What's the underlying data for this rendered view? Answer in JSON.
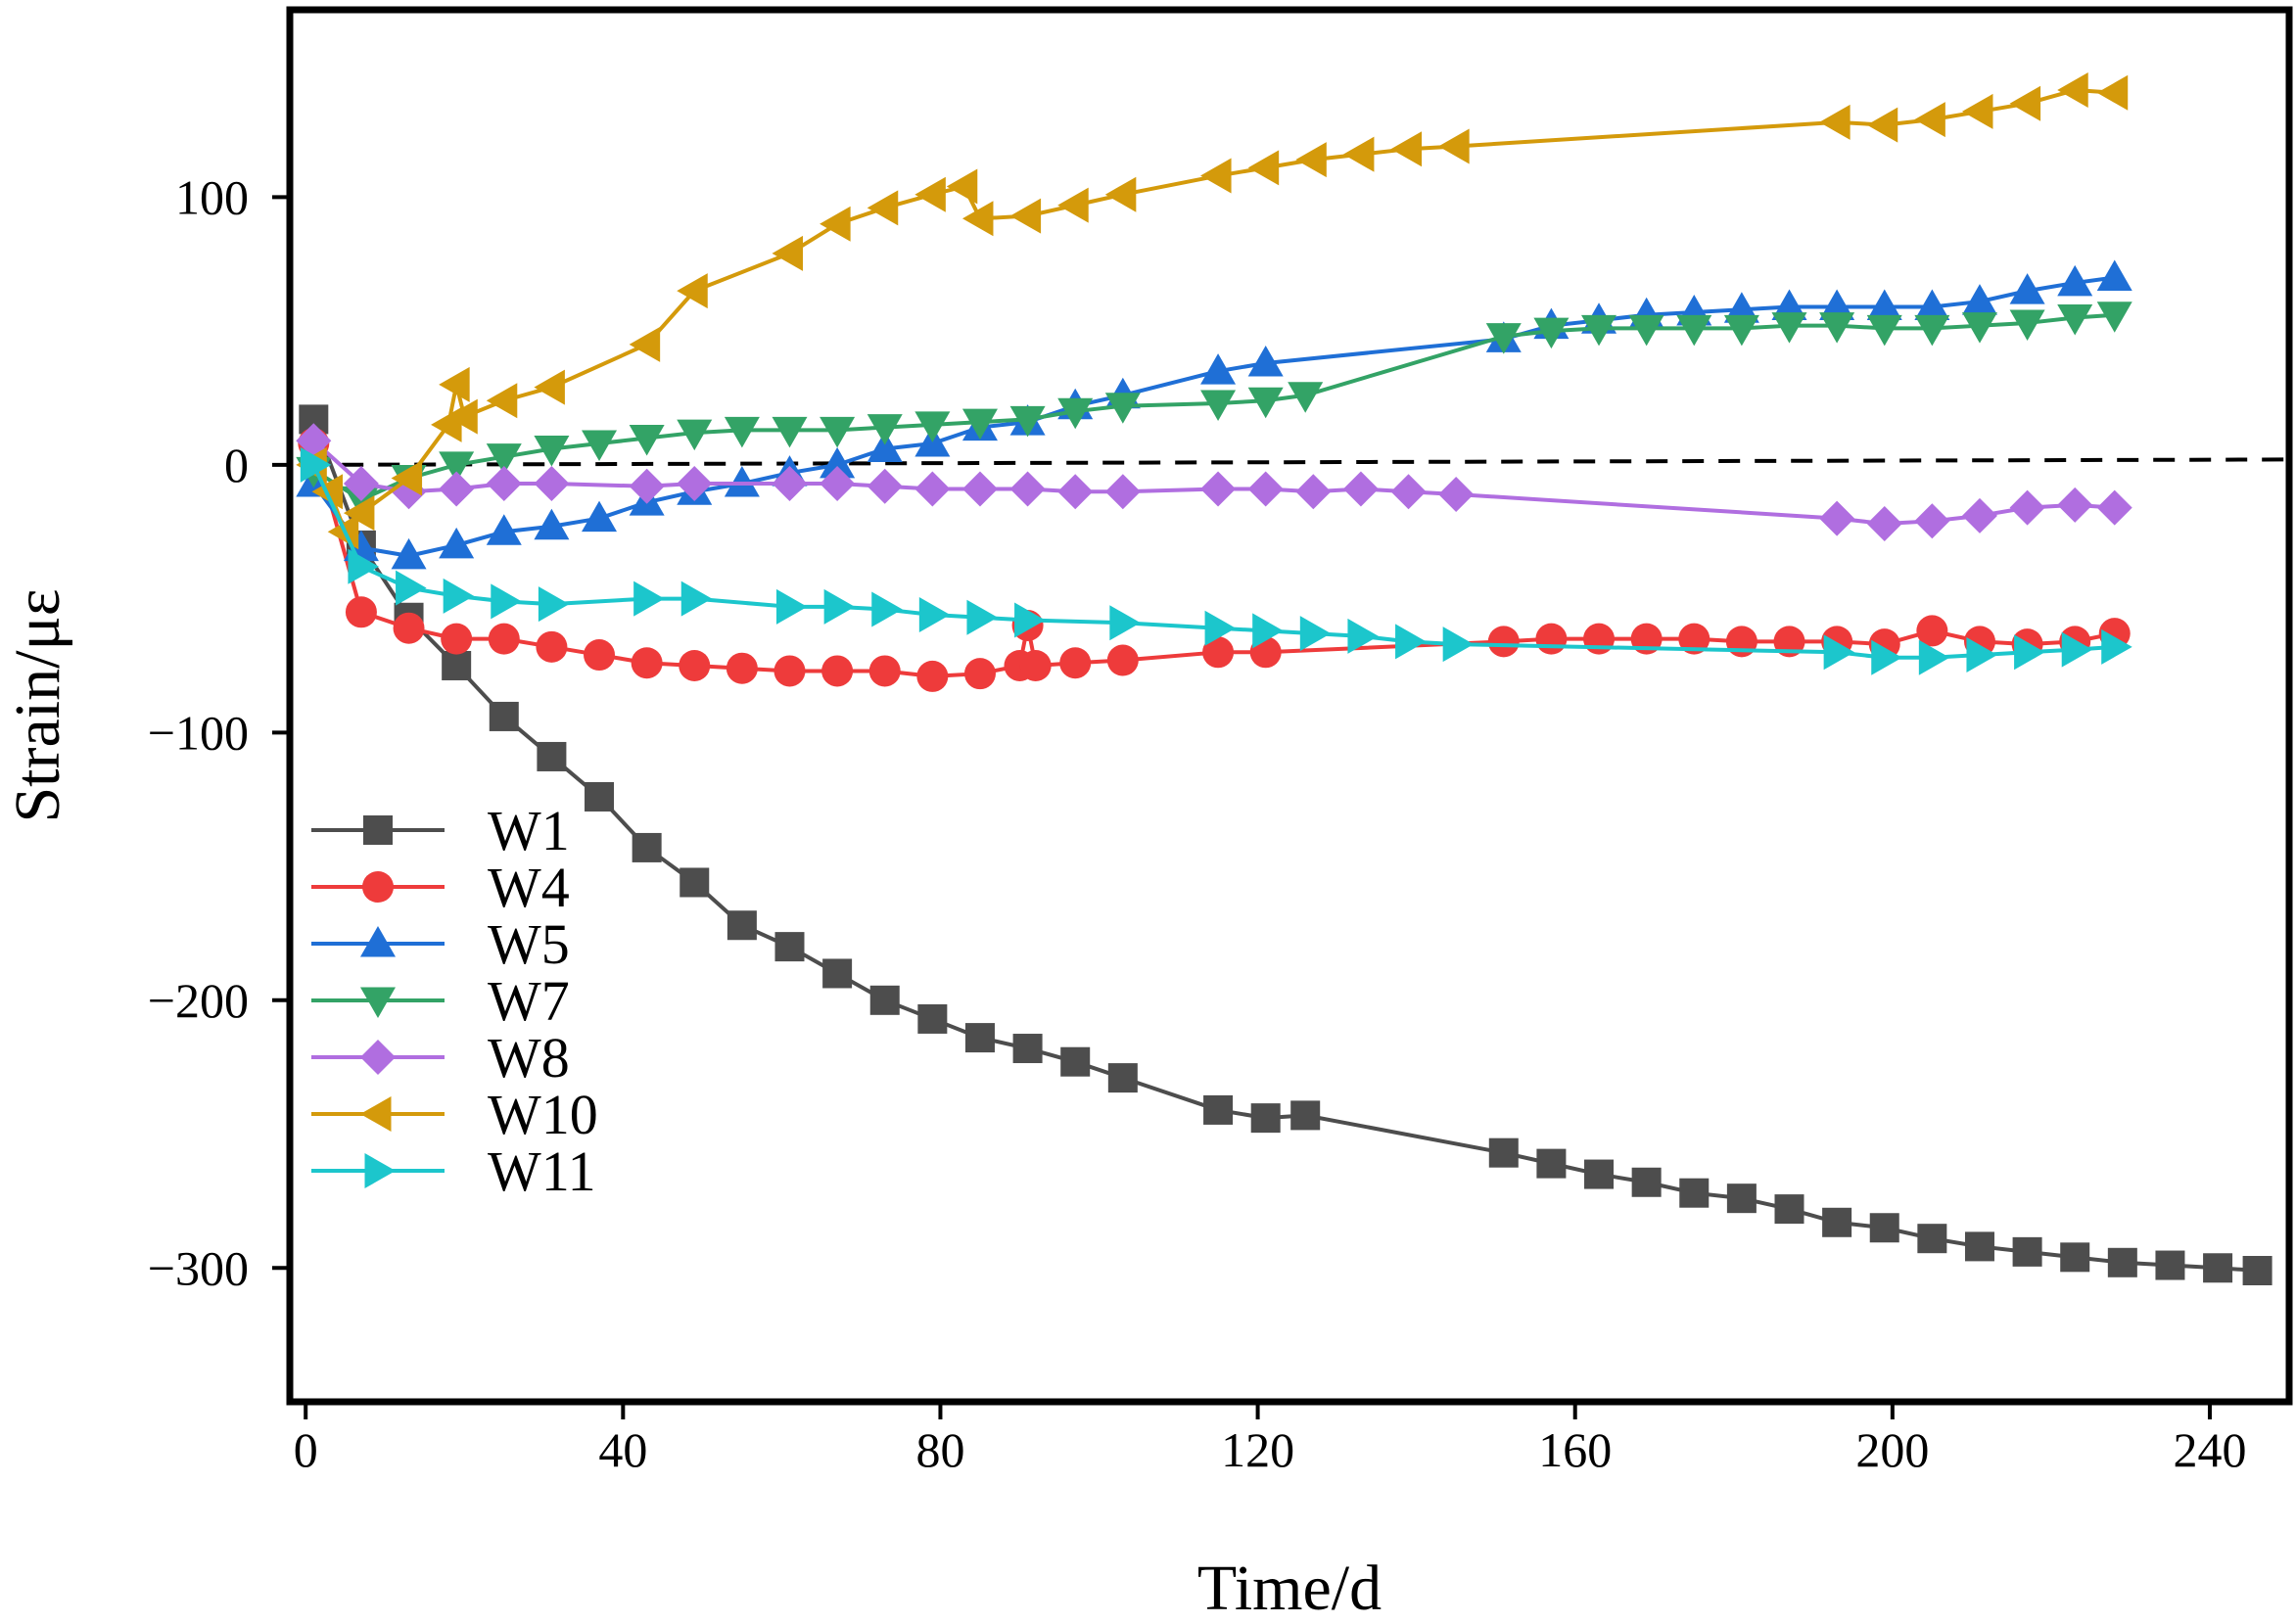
{
  "chart_data": {
    "type": "line",
    "title": "",
    "xlabel": "Time/d",
    "ylabel": "Strain/με",
    "xlim": [
      -2,
      250
    ],
    "ylim": [
      -350,
      170
    ],
    "xticks": [
      0,
      40,
      80,
      120,
      160,
      200,
      240
    ],
    "yticks": [
      100,
      0,
      -100,
      -200,
      -300
    ],
    "xtick_labels": [
      "0",
      "40",
      "80",
      "120",
      "160",
      "200",
      "240"
    ],
    "ytick_labels": [
      "100",
      "0",
      "−100",
      "−200",
      "−300"
    ],
    "grid": false,
    "legend_position": "bottom-left",
    "reference_line": {
      "x": [
        0,
        250
      ],
      "y": [
        0,
        2
      ],
      "style": "dashed",
      "color": "#000000"
    },
    "series": [
      {
        "name": "W1",
        "color": "#4d4d4d",
        "marker": "square",
        "x": [
          1,
          7,
          13,
          19,
          25,
          31,
          37,
          43,
          49,
          55,
          61,
          67,
          73,
          79,
          85,
          91,
          97,
          103,
          115,
          121,
          126,
          151,
          157,
          163,
          169,
          175,
          181,
          187,
          193,
          199,
          205,
          211,
          217,
          223,
          229,
          235,
          241,
          246
        ],
        "y": [
          17,
          -30,
          -57,
          -75,
          -94,
          -109,
          -124,
          -143,
          -156,
          -172,
          -180,
          -190,
          -200,
          -207,
          -214,
          -218,
          -223,
          -229,
          -241,
          -244,
          -243,
          -257,
          -261,
          -265,
          -268,
          -272,
          -274,
          -278,
          -283,
          -285,
          -289,
          -292,
          -294,
          -296,
          -298,
          -299,
          -300,
          -301
        ]
      },
      {
        "name": "W4",
        "color": "#ee3b3b",
        "marker": "circle",
        "x": [
          1,
          7,
          13,
          19,
          25,
          31,
          37,
          43,
          49,
          55,
          61,
          67,
          73,
          79,
          85,
          90,
          91,
          92,
          97,
          103,
          115,
          121,
          151,
          157,
          163,
          169,
          175,
          181,
          187,
          193,
          199,
          205,
          211,
          217,
          223,
          228
        ],
        "y": [
          8,
          -55,
          -61,
          -65,
          -65,
          -68,
          -71,
          -74,
          -75,
          -76,
          -77,
          -77,
          -77,
          -79,
          -78,
          -75,
          -60,
          -75,
          -74,
          -73,
          -70,
          -70,
          -66,
          -65,
          -65,
          -65,
          -65,
          -66,
          -66,
          -66,
          -67,
          -62,
          -66,
          -67,
          -66,
          -63
        ]
      },
      {
        "name": "W5",
        "color": "#1f6fd6",
        "marker": "triangle-up",
        "x": [
          1,
          7,
          13,
          19,
          25,
          31,
          37,
          43,
          49,
          55,
          61,
          67,
          73,
          79,
          85,
          91,
          97,
          103,
          115,
          121,
          151,
          157,
          163,
          169,
          175,
          181,
          187,
          193,
          199,
          205,
          211,
          217,
          223,
          228
        ],
        "y": [
          -7,
          -31,
          -34,
          -30,
          -25,
          -23,
          -20,
          -14,
          -10,
          -7,
          -3,
          0,
          6,
          8,
          14,
          16,
          22,
          26,
          35,
          38,
          47,
          52,
          54,
          56,
          57,
          58,
          59,
          59,
          59,
          59,
          61,
          65,
          68,
          70
        ]
      },
      {
        "name": "W7",
        "color": "#33a366",
        "marker": "triangle-down",
        "x": [
          1,
          7,
          13,
          19,
          25,
          31,
          37,
          43,
          49,
          55,
          61,
          67,
          73,
          79,
          85,
          91,
          97,
          103,
          115,
          121,
          126,
          151,
          157,
          163,
          169,
          175,
          181,
          187,
          193,
          199,
          205,
          211,
          217,
          223,
          228
        ],
        "y": [
          -2,
          -13,
          -5,
          0,
          3,
          6,
          8,
          10,
          12,
          13,
          13,
          13,
          14,
          15,
          16,
          17,
          20,
          22,
          23,
          24,
          26,
          48,
          50,
          51,
          51,
          51,
          51,
          52,
          52,
          51,
          51,
          52,
          53,
          55,
          56
        ]
      },
      {
        "name": "W8",
        "color": "#b06ee0",
        "marker": "diamond",
        "x": [
          1,
          7,
          13,
          19,
          25,
          31,
          43,
          49,
          61,
          67,
          73,
          79,
          85,
          91,
          97,
          103,
          115,
          121,
          127,
          133,
          139,
          145,
          193,
          199,
          205,
          211,
          217,
          223,
          228
        ],
        "y": [
          9,
          -7,
          -10,
          -9,
          -7,
          -7,
          -8,
          -7,
          -7,
          -7,
          -8,
          -9,
          -9,
          -9,
          -10,
          -10,
          -9,
          -9,
          -10,
          -9,
          -10,
          -11,
          -20,
          -22,
          -21,
          -19,
          -16,
          -15,
          -16
        ]
      },
      {
        "name": "W10",
        "color": "#d49a0b",
        "marker": "triangle-left",
        "x": [
          1,
          3,
          5,
          7,
          13,
          18,
          19,
          20,
          25,
          31,
          43,
          49,
          61,
          67,
          73,
          79,
          83,
          85,
          91,
          97,
          103,
          115,
          121,
          127,
          133,
          139,
          145,
          193,
          199,
          205,
          211,
          217,
          223,
          228
        ],
        "y": [
          0,
          -10,
          -25,
          -18,
          -5,
          15,
          30,
          18,
          24,
          29,
          45,
          65,
          79,
          90,
          96,
          101,
          104,
          92,
          93,
          97,
          101,
          108,
          111,
          114,
          116,
          118,
          119,
          128,
          127,
          129,
          132,
          135,
          140,
          139
        ]
      },
      {
        "name": "W11",
        "color": "#1cc6cc",
        "marker": "triangle-right",
        "x": [
          1,
          7,
          13,
          19,
          25,
          31,
          43,
          49,
          61,
          67,
          73,
          79,
          85,
          91,
          103,
          115,
          121,
          127,
          133,
          139,
          145,
          193,
          199,
          205,
          211,
          217,
          223,
          228
        ],
        "y": [
          0,
          -38,
          -46,
          -49,
          -51,
          -52,
          -50,
          -50,
          -53,
          -53,
          -54,
          -56,
          -57,
          -58,
          -59,
          -61,
          -62,
          -63,
          -64,
          -66,
          -67,
          -70,
          -72,
          -72,
          -71,
          -70,
          -69,
          -68
        ]
      }
    ]
  }
}
